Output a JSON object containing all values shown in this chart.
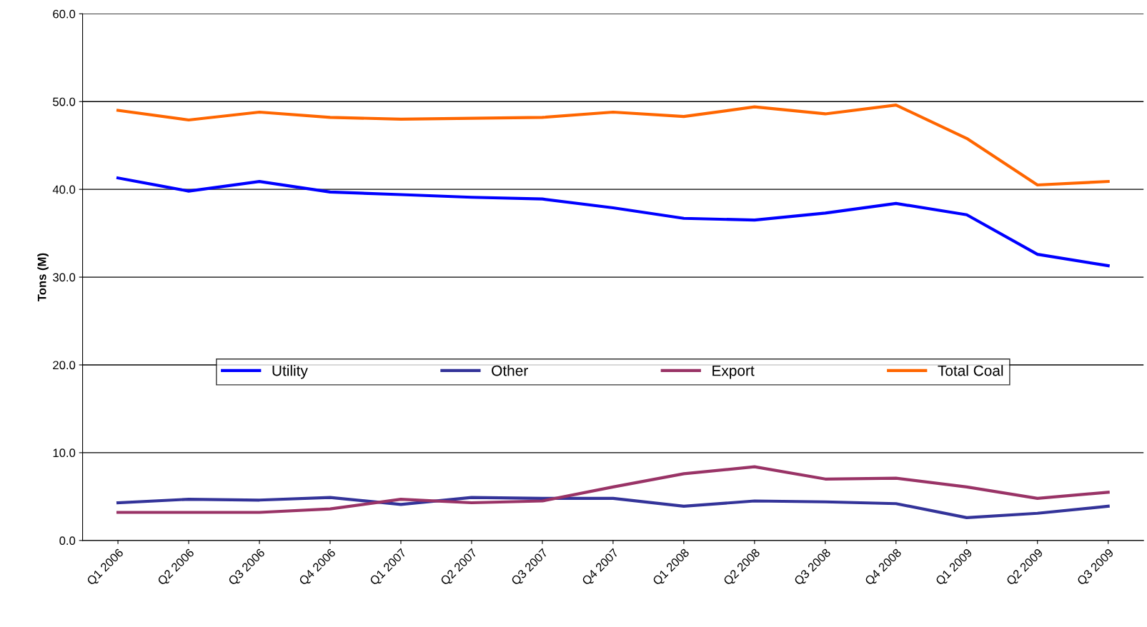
{
  "chart_data": {
    "type": "line",
    "ylabel": "Tons (M)",
    "categories": [
      "Q1 2006",
      "Q2 2006",
      "Q3 2006",
      "Q4 2006",
      "Q1 2007",
      "Q2 2007",
      "Q3 2007",
      "Q4 2007",
      "Q1 2008",
      "Q2 2008",
      "Q3 2008",
      "Q4 2008",
      "Q1 2009",
      "Q2 2009",
      "Q3 2009"
    ],
    "series": [
      {
        "name": "Utility",
        "color": "#0000ff",
        "values": [
          41.3,
          39.8,
          40.9,
          39.7,
          39.4,
          39.1,
          38.9,
          37.9,
          36.7,
          36.5,
          37.3,
          38.4,
          37.1,
          32.6,
          31.3
        ]
      },
      {
        "name": "Other",
        "color": "#333399",
        "values": [
          4.3,
          4.7,
          4.6,
          4.9,
          4.1,
          4.9,
          4.8,
          4.8,
          3.9,
          4.5,
          4.4,
          4.2,
          2.6,
          3.1,
          3.9
        ]
      },
      {
        "name": "Export",
        "color": "#993366",
        "values": [
          3.2,
          3.2,
          3.2,
          3.6,
          4.7,
          4.3,
          4.5,
          6.1,
          7.6,
          8.4,
          7.0,
          7.1,
          6.1,
          4.8,
          5.5
        ]
      },
      {
        "name": "Total Coal",
        "color": "#ff6600",
        "values": [
          49.0,
          47.9,
          48.8,
          48.2,
          48.0,
          48.1,
          48.2,
          48.8,
          48.3,
          49.4,
          48.6,
          49.6,
          45.8,
          40.5,
          40.9
        ]
      }
    ],
    "ylim": [
      0,
      60
    ],
    "yticks": [
      {
        "value": 0,
        "label": "0.0"
      },
      {
        "value": 10,
        "label": "10.0"
      },
      {
        "value": 20,
        "label": "20.0"
      },
      {
        "value": 30,
        "label": "30.0"
      },
      {
        "value": 40,
        "label": "40.0"
      },
      {
        "value": 50,
        "label": "50.0"
      },
      {
        "value": 60,
        "label": "60.0"
      }
    ],
    "grid": "y",
    "legend": "center",
    "marker": "none",
    "line_style": "solid"
  }
}
